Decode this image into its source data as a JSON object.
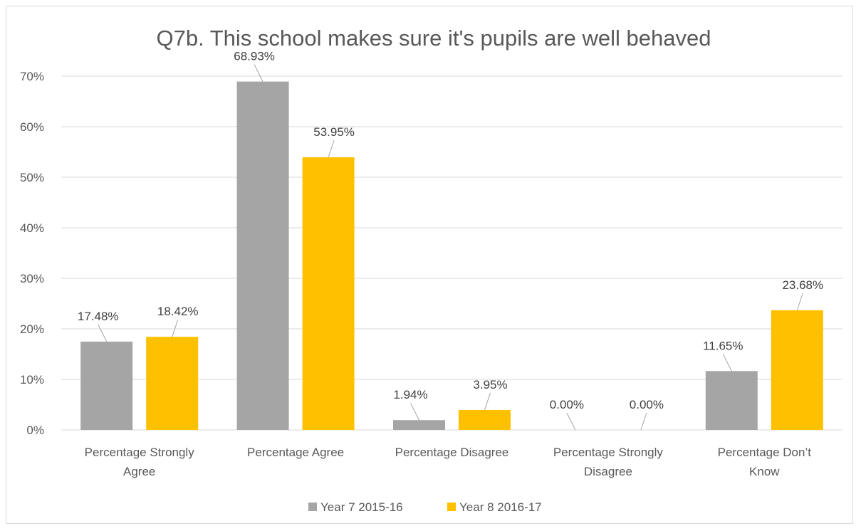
{
  "chart_data": {
    "type": "bar",
    "title": "Q7b. This school makes sure it's pupils are well behaved",
    "xlabel": "",
    "ylabel": "",
    "categories": [
      [
        "Percentage Strongly",
        "Agree"
      ],
      [
        "Percentage Agree"
      ],
      [
        "Percentage Disagree"
      ],
      [
        "Percentage Strongly",
        "Disagree"
      ],
      [
        "Percentage Don’t",
        "Know"
      ]
    ],
    "series": [
      {
        "name": "Year 7 2015-16",
        "color": "#a5a5a5",
        "values": [
          17.48,
          68.93,
          1.94,
          0.0,
          11.65
        ],
        "labels": [
          "17.48%",
          "68.93%",
          "1.94%",
          "0.00%",
          "11.65%"
        ]
      },
      {
        "name": "Year 8 2016-17",
        "color": "#ffc000",
        "values": [
          18.42,
          53.95,
          3.95,
          0.0,
          23.68
        ],
        "labels": [
          "18.42%",
          "53.95%",
          "3.95%",
          "0.00%",
          "23.68%"
        ]
      }
    ],
    "ylim": [
      0,
      70
    ],
    "yticks": [
      0,
      10,
      20,
      30,
      40,
      50,
      60,
      70
    ],
    "ytick_labels": [
      "0%",
      "10%",
      "20%",
      "30%",
      "40%",
      "50%",
      "60%",
      "70%"
    ],
    "grid": true,
    "gridline_color": "#d9d9d9",
    "legend_position": "bottom"
  }
}
